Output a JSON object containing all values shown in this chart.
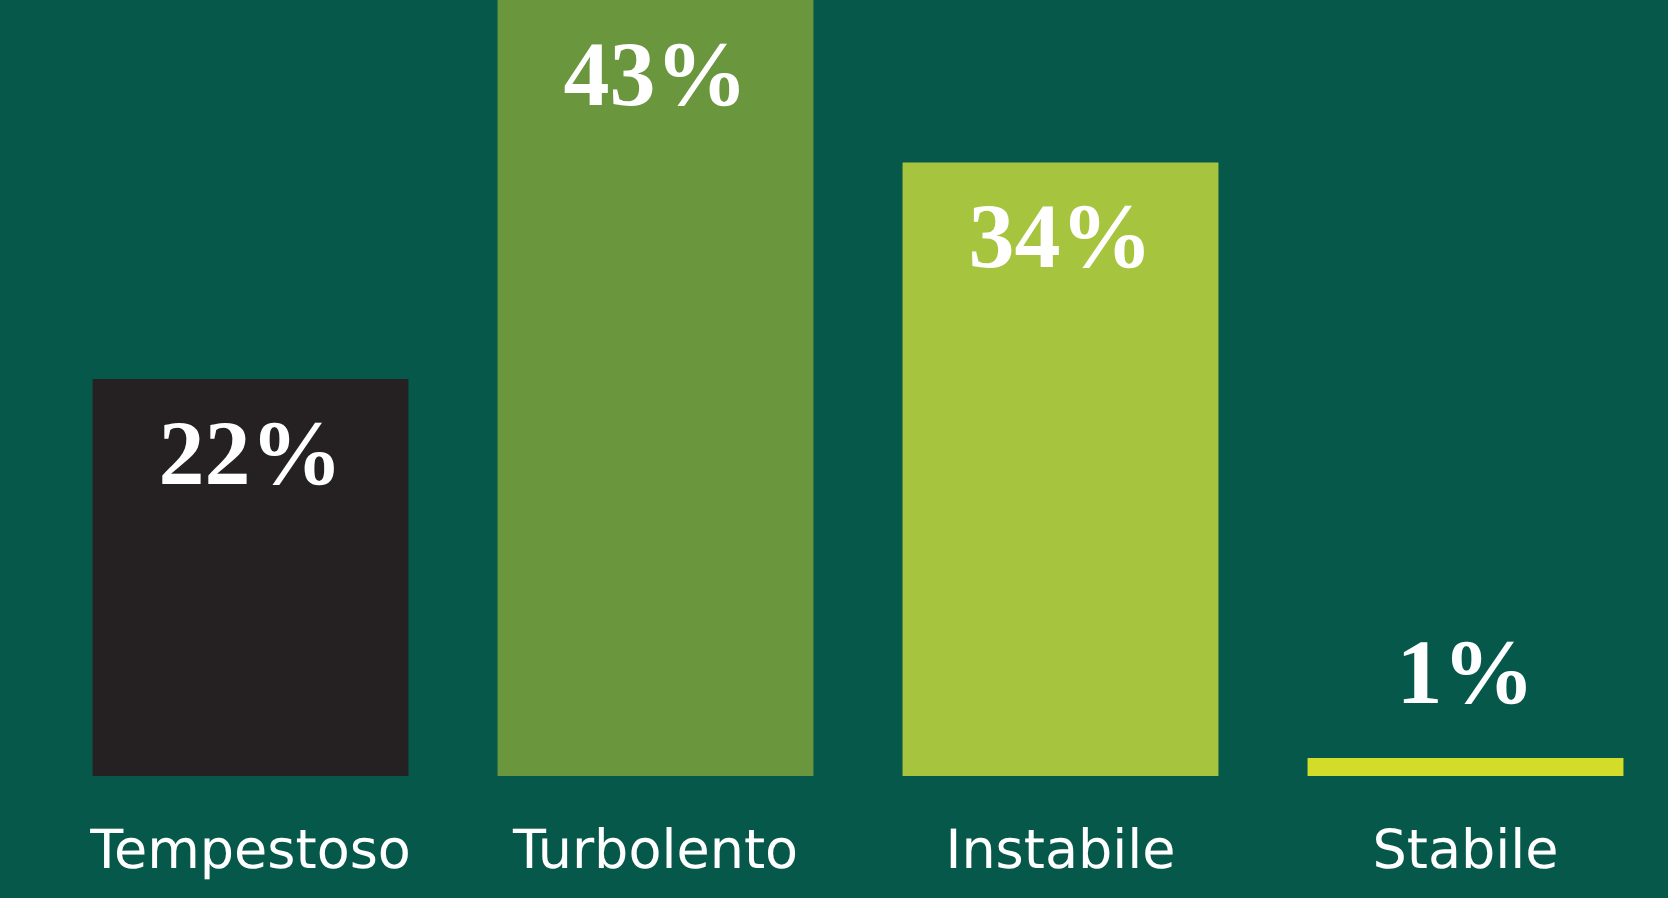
{
  "chart_data": {
    "type": "bar",
    "categories": [
      "Tempestoso",
      "Turbolento",
      "Instabile",
      "Stabile"
    ],
    "values": [
      22,
      43,
      34,
      1
    ],
    "colors": [
      "#252122",
      "#6a963e",
      "#a7c43f",
      "#d4dc2a"
    ],
    "value_labels": [
      "22%",
      "43%",
      "34%",
      "1%"
    ]
  }
}
